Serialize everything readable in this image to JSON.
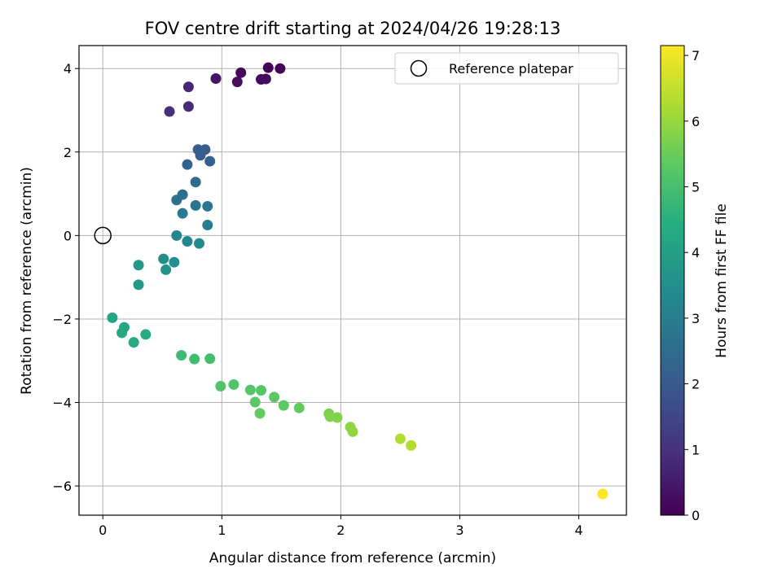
{
  "chart_data": {
    "type": "scatter",
    "title": "FOV centre drift starting at 2024/04/26 19:28:13",
    "xlabel": "Angular distance from reference (arcmin)",
    "ylabel": "Rotation from reference (arcmin)",
    "xlim": [
      -0.2,
      4.4
    ],
    "ylim": [
      -6.7,
      4.55
    ],
    "x_ticks": [
      0,
      1,
      2,
      3,
      4
    ],
    "y_ticks": [
      -6,
      -4,
      -2,
      0,
      2,
      4
    ],
    "x_tick_labels": [
      "0",
      "1",
      "2",
      "3",
      "4"
    ],
    "y_tick_labels": [
      "−6",
      "−4",
      "−2",
      "0",
      "2",
      "4"
    ],
    "grid": true,
    "legend": {
      "position": "top-right",
      "entries": [
        "Reference platepar"
      ]
    },
    "reference_point": {
      "x": 0,
      "y": 0,
      "label": "Reference platepar"
    },
    "colorbar": {
      "label": "Hours from first FF file",
      "range": [
        0,
        7.15
      ],
      "ticks": [
        0,
        1,
        2,
        3,
        4,
        5,
        6,
        7
      ],
      "tick_labels": [
        "0",
        "1",
        "2",
        "3",
        "4",
        "5",
        "6",
        "7"
      ],
      "colormap": "viridis"
    },
    "points": [
      {
        "x": 1.39,
        "y": 4.02,
        "c": 0.05
      },
      {
        "x": 1.49,
        "y": 4.0,
        "c": 0.1
      },
      {
        "x": 1.16,
        "y": 3.9,
        "c": 0.15
      },
      {
        "x": 1.33,
        "y": 3.74,
        "c": 0.2
      },
      {
        "x": 1.37,
        "y": 3.75,
        "c": 0.25
      },
      {
        "x": 1.13,
        "y": 3.68,
        "c": 0.3
      },
      {
        "x": 0.95,
        "y": 3.76,
        "c": 0.4
      },
      {
        "x": 0.72,
        "y": 3.56,
        "c": 0.75
      },
      {
        "x": 0.72,
        "y": 3.09,
        "c": 0.85
      },
      {
        "x": 0.56,
        "y": 2.97,
        "c": 0.95
      },
      {
        "x": 0.8,
        "y": 2.06,
        "c": 2.1
      },
      {
        "x": 0.86,
        "y": 2.06,
        "c": 2.1
      },
      {
        "x": 0.82,
        "y": 1.92,
        "c": 2.15
      },
      {
        "x": 0.9,
        "y": 1.78,
        "c": 2.2
      },
      {
        "x": 0.71,
        "y": 1.7,
        "c": 2.25
      },
      {
        "x": 0.78,
        "y": 1.28,
        "c": 2.45
      },
      {
        "x": 0.67,
        "y": 0.98,
        "c": 2.6
      },
      {
        "x": 0.62,
        "y": 0.85,
        "c": 2.65
      },
      {
        "x": 0.78,
        "y": 0.72,
        "c": 2.8
      },
      {
        "x": 0.88,
        "y": 0.7,
        "c": 2.85
      },
      {
        "x": 0.67,
        "y": 0.53,
        "c": 2.9
      },
      {
        "x": 0.88,
        "y": 0.25,
        "c": 3.0
      },
      {
        "x": 0.62,
        "y": 0.0,
        "c": 3.25
      },
      {
        "x": 0.71,
        "y": -0.14,
        "c": 3.3
      },
      {
        "x": 0.81,
        "y": -0.19,
        "c": 3.35
      },
      {
        "x": 0.51,
        "y": -0.56,
        "c": 3.5
      },
      {
        "x": 0.6,
        "y": -0.64,
        "c": 3.55
      },
      {
        "x": 0.53,
        "y": -0.82,
        "c": 3.6
      },
      {
        "x": 0.3,
        "y": -0.71,
        "c": 3.75
      },
      {
        "x": 0.3,
        "y": -1.18,
        "c": 3.85
      },
      {
        "x": 0.08,
        "y": -1.97,
        "c": 4.2
      },
      {
        "x": 0.18,
        "y": -2.2,
        "c": 4.25
      },
      {
        "x": 0.16,
        "y": -2.33,
        "c": 4.3
      },
      {
        "x": 0.36,
        "y": -2.37,
        "c": 4.3
      },
      {
        "x": 0.26,
        "y": -2.56,
        "c": 4.35
      },
      {
        "x": 0.66,
        "y": -2.87,
        "c": 4.85
      },
      {
        "x": 0.77,
        "y": -2.96,
        "c": 4.9
      },
      {
        "x": 0.9,
        "y": -2.95,
        "c": 4.95
      },
      {
        "x": 0.99,
        "y": -3.61,
        "c": 5.15
      },
      {
        "x": 1.1,
        "y": -3.57,
        "c": 5.15
      },
      {
        "x": 1.24,
        "y": -3.7,
        "c": 5.2
      },
      {
        "x": 1.33,
        "y": -3.71,
        "c": 5.25
      },
      {
        "x": 1.44,
        "y": -3.87,
        "c": 5.3
      },
      {
        "x": 1.28,
        "y": -3.99,
        "c": 5.3
      },
      {
        "x": 1.52,
        "y": -4.07,
        "c": 5.35
      },
      {
        "x": 1.65,
        "y": -4.13,
        "c": 5.4
      },
      {
        "x": 1.32,
        "y": -4.26,
        "c": 5.4
      },
      {
        "x": 1.9,
        "y": -4.27,
        "c": 5.7
      },
      {
        "x": 1.91,
        "y": -4.34,
        "c": 5.75
      },
      {
        "x": 1.97,
        "y": -4.36,
        "c": 5.8
      },
      {
        "x": 2.08,
        "y": -4.59,
        "c": 5.9
      },
      {
        "x": 2.1,
        "y": -4.7,
        "c": 5.95
      },
      {
        "x": 2.5,
        "y": -4.87,
        "c": 6.3
      },
      {
        "x": 2.59,
        "y": -5.03,
        "c": 6.35
      },
      {
        "x": 4.2,
        "y": -6.19,
        "c": 7.15
      }
    ]
  }
}
